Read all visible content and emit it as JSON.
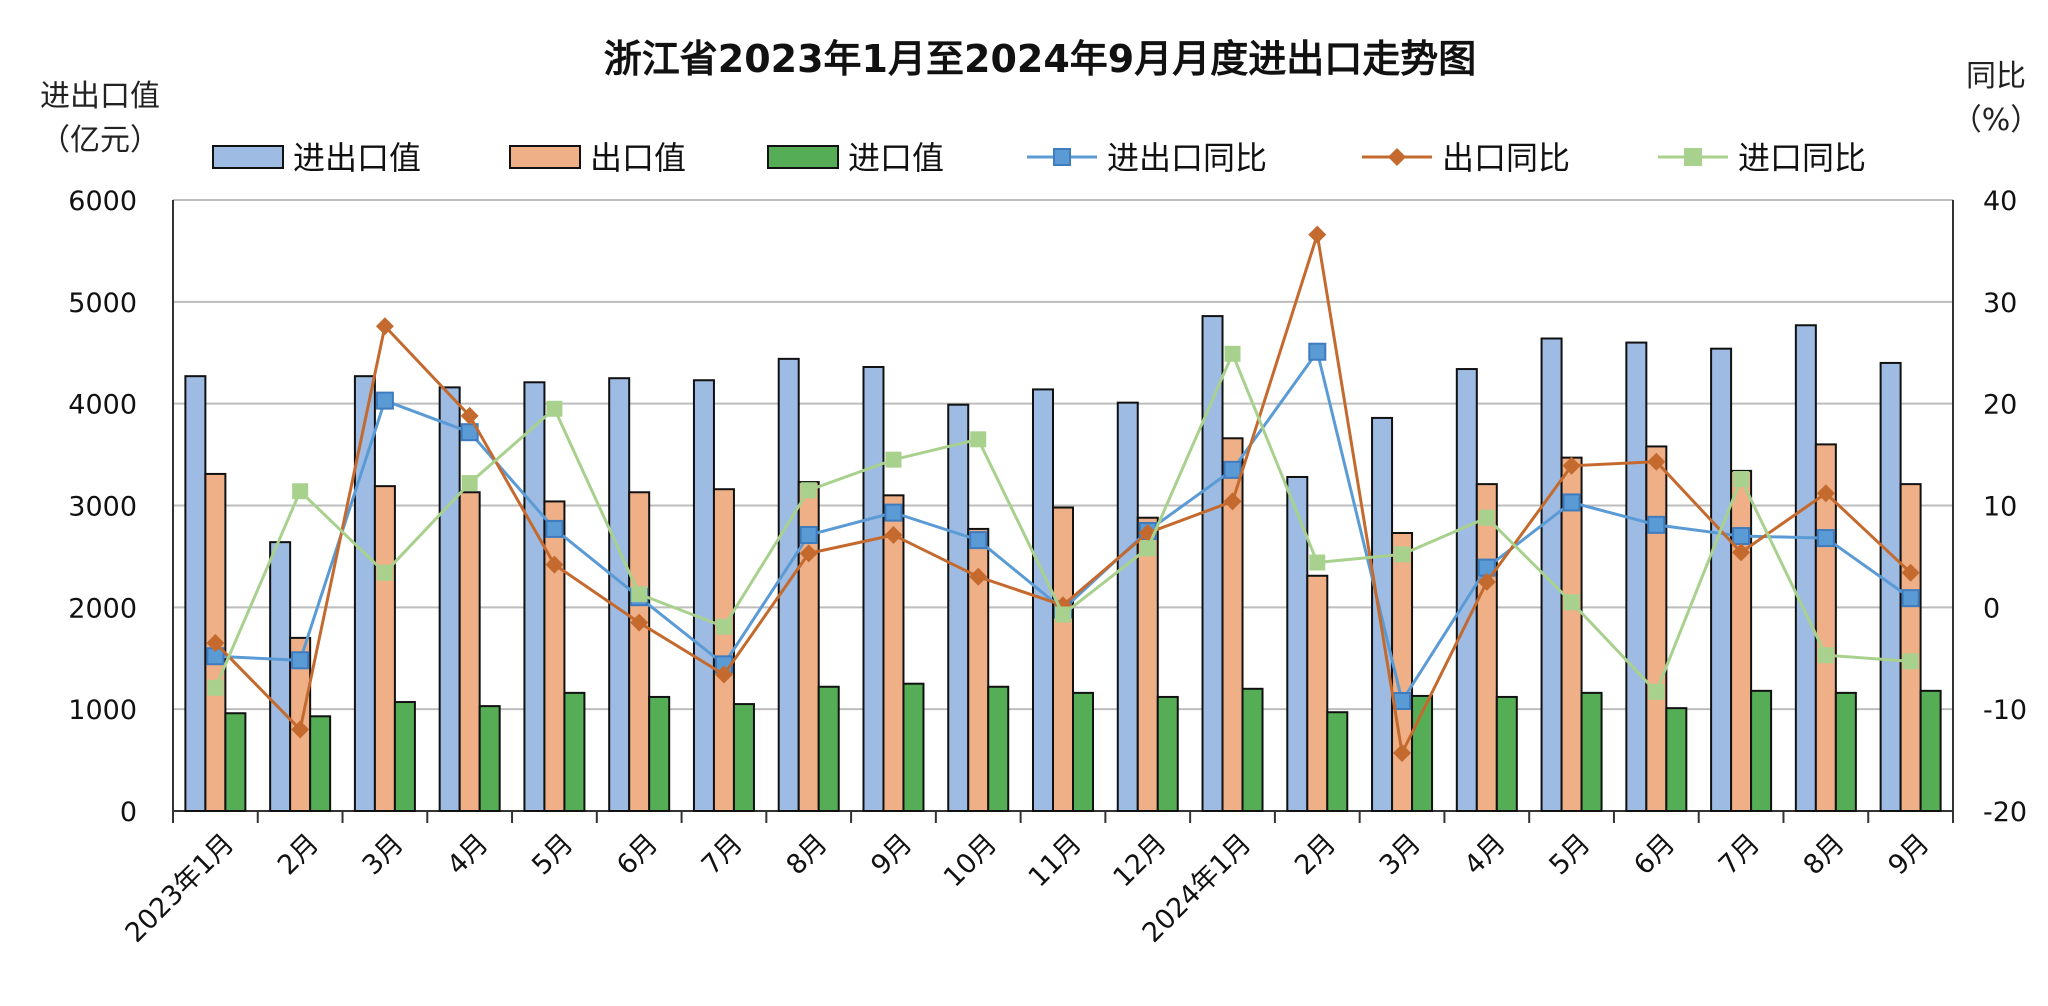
{
  "chart_data": {
    "type": "bar",
    "title": "浙江省2023年1月至2024年9月月度进出口走势图",
    "ylabel_left": [
      "进出口值",
      "（亿元）"
    ],
    "ylabel_right": [
      "同比",
      "（%）"
    ],
    "ylim_left": [
      0,
      6000
    ],
    "ylim_right": [
      -20,
      40
    ],
    "yticks_left": [
      "0",
      "1000",
      "2000",
      "3000",
      "4000",
      "5000",
      "6000"
    ],
    "yticks_right": [
      "-20",
      "-10",
      "0",
      "10",
      "20",
      "30",
      "40"
    ],
    "grid": true,
    "legend_position": "top",
    "categories": [
      "2023年1月",
      "2月",
      "3月",
      "4月",
      "5月",
      "6月",
      "7月",
      "8月",
      "9月",
      "10月",
      "11月",
      "12月",
      "2024年1月",
      "2月",
      "3月",
      "4月",
      "5月",
      "6月",
      "7月",
      "8月",
      "9月"
    ],
    "bar_series": [
      {
        "name": "进出口值",
        "color": "#9dbbe3",
        "values": [
          4270,
          2640,
          4270,
          4160,
          4210,
          4250,
          4230,
          4440,
          4360,
          3990,
          4140,
          4010,
          4860,
          3280,
          3860,
          4340,
          4640,
          4600,
          4540,
          4770,
          4400
        ]
      },
      {
        "name": "出口值",
        "color": "#efb088",
        "values": [
          3310,
          1700,
          3190,
          3130,
          3040,
          3130,
          3160,
          3230,
          3100,
          2770,
          2980,
          2880,
          3660,
          2310,
          2730,
          3210,
          3470,
          3580,
          3340,
          3600,
          3210
        ]
      },
      {
        "name": "进口值",
        "color": "#55ad55",
        "values": [
          960,
          930,
          1070,
          1030,
          1160,
          1120,
          1050,
          1220,
          1250,
          1220,
          1160,
          1120,
          1200,
          970,
          1130,
          1120,
          1160,
          1010,
          1180,
          1160,
          1180
        ]
      }
    ],
    "line_series": [
      {
        "name": "进出口同比",
        "color": "#5b9bd5",
        "marker": "square",
        "values": [
          -4.8,
          -5.2,
          20.3,
          17.2,
          7.7,
          1.0,
          -5.6,
          7.1,
          9.3,
          6.6,
          -0.2,
          7.5,
          13.5,
          25.1,
          -9.2,
          3.9,
          10.3,
          8.1,
          7.0,
          6.8,
          0.9
        ]
      },
      {
        "name": "出口同比",
        "color": "#c46a2e",
        "marker": "diamond",
        "values": [
          -3.5,
          -12.0,
          27.6,
          18.8,
          4.2,
          -1.5,
          -6.6,
          5.3,
          7.1,
          3.0,
          0.2,
          7.3,
          10.4,
          36.6,
          -14.3,
          2.5,
          13.9,
          14.3,
          5.4,
          11.2,
          3.4
        ]
      },
      {
        "name": "进口同比",
        "color": "#a9d18e",
        "marker": "square",
        "values": [
          -7.9,
          11.4,
          3.4,
          12.2,
          19.5,
          1.3,
          -1.9,
          11.5,
          14.5,
          16.5,
          -0.7,
          5.8,
          24.9,
          4.4,
          5.2,
          8.8,
          0.5,
          -8.3,
          12.6,
          -4.7,
          -5.3
        ]
      }
    ]
  }
}
